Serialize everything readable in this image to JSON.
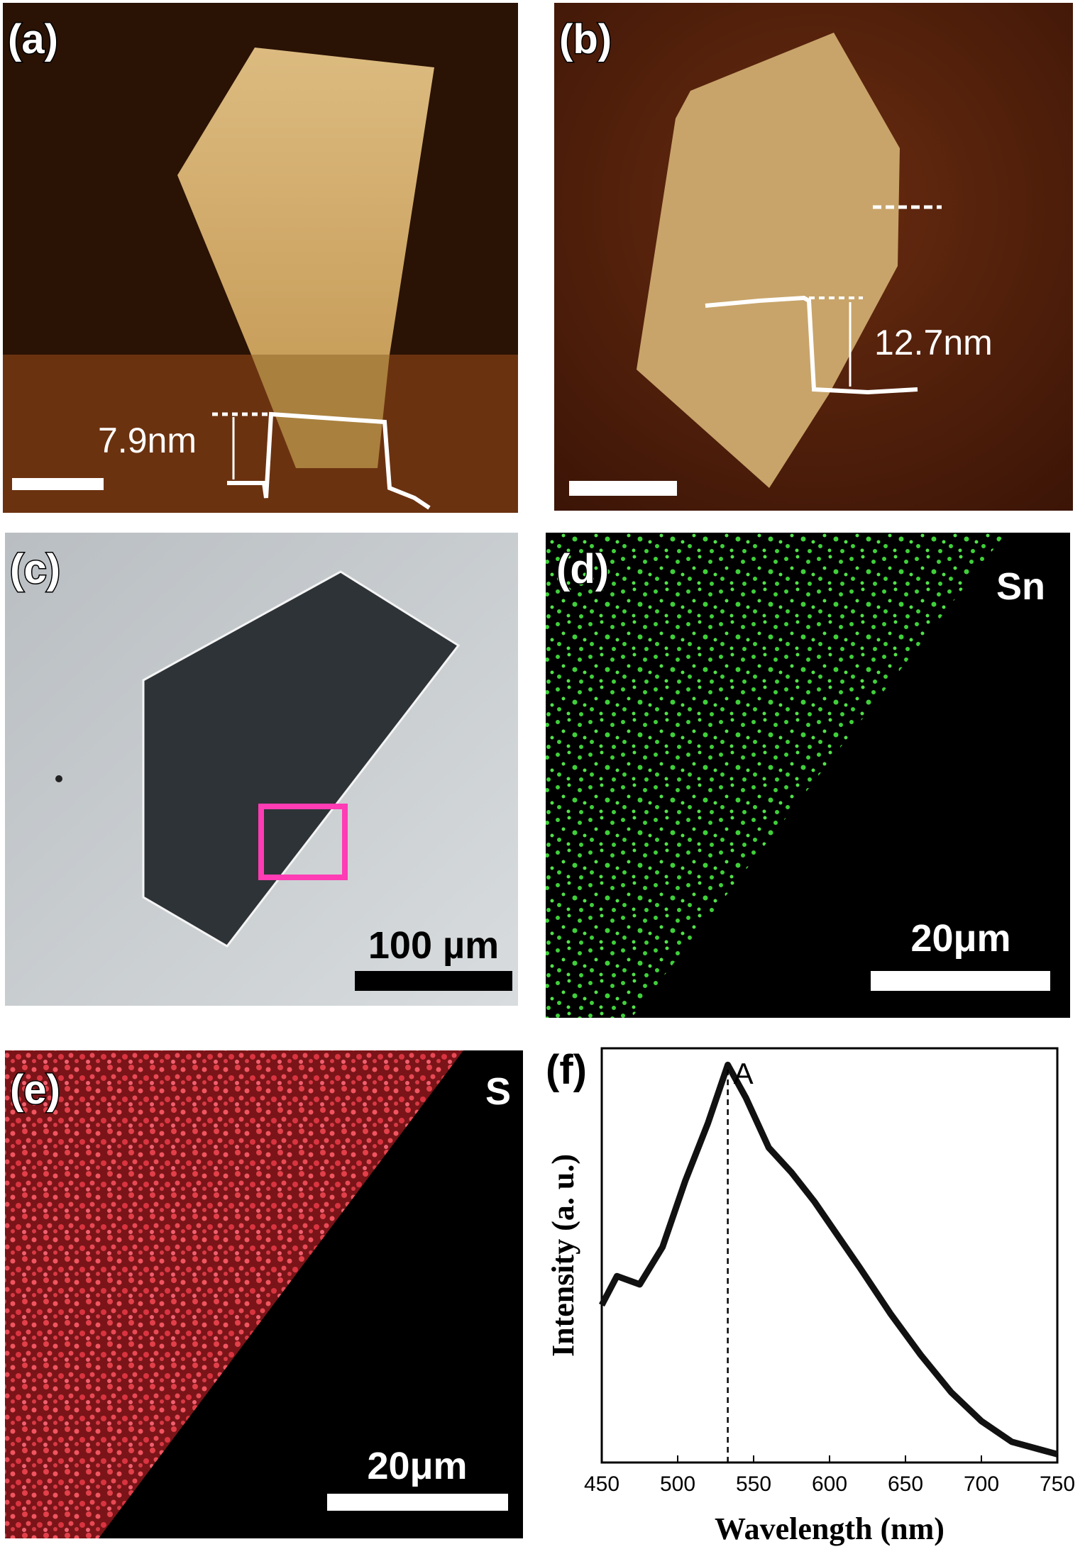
{
  "panels": [
    {
      "label": "(a)",
      "annotation": "7.9nm"
    },
    {
      "label": "(b)",
      "annotation": "12.7nm"
    },
    {
      "label": "(c)",
      "scale_bar": "100 µm"
    },
    {
      "label": "(d)",
      "element": "Sn",
      "scale_bar": "20μm"
    },
    {
      "label": "(e)",
      "element": "S",
      "scale_bar": "20μm"
    },
    {
      "label": "(f)"
    }
  ],
  "chart_data": {
    "type": "line",
    "xlabel": "Wavelength (nm)",
    "ylabel": "Intensity (a. u.)",
    "x": [
      450,
      460,
      475,
      490,
      505,
      520,
      533,
      545,
      560,
      575,
      590,
      605,
      620,
      640,
      660,
      680,
      700,
      720,
      740,
      750
    ],
    "values": [
      38,
      45,
      43,
      52,
      68,
      82,
      96,
      88,
      76,
      70,
      63,
      55,
      47,
      36,
      26,
      17,
      10,
      5,
      3,
      2
    ],
    "color": "#111111",
    "xlim": [
      450,
      750
    ],
    "xticks": [
      450,
      500,
      550,
      600,
      650,
      700,
      750
    ],
    "ylim": [
      0,
      100
    ],
    "annotations": [
      {
        "x": 533,
        "text": "A"
      }
    ]
  }
}
